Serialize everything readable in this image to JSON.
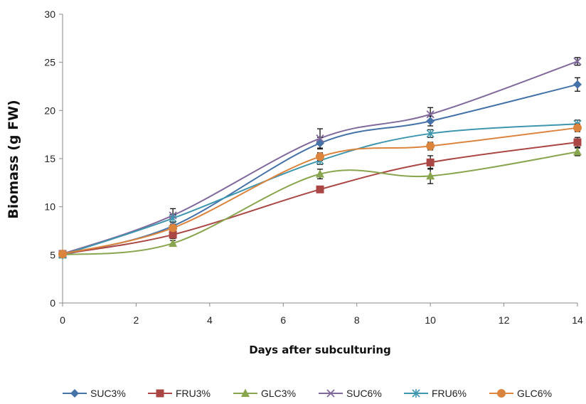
{
  "chart_data": {
    "type": "line",
    "title": "",
    "xlabel": "Days after subculturing",
    "ylabel": "Biomass (g FW)",
    "xlim": [
      0,
      14
    ],
    "ylim": [
      0,
      30
    ],
    "xticks": [
      0,
      2,
      4,
      6,
      8,
      10,
      12,
      14
    ],
    "yticks": [
      0,
      5,
      10,
      15,
      20,
      25,
      30
    ],
    "grid": false,
    "legend_position": "bottom",
    "x": [
      0,
      3,
      7,
      10,
      14
    ],
    "series": [
      {
        "name": "SUC3%",
        "color": "#4572A7",
        "marker": "diamond",
        "values": [
          5.0,
          8.0,
          16.6,
          18.9,
          22.7
        ],
        "errors": [
          0.2,
          0.4,
          0.6,
          0.5,
          0.7
        ]
      },
      {
        "name": "FRU3%",
        "color": "#AA4643",
        "marker": "square",
        "values": [
          5.1,
          7.1,
          11.8,
          14.6,
          16.7
        ],
        "errors": [
          0.2,
          0.4,
          0.3,
          0.7,
          0.5
        ]
      },
      {
        "name": "GLC3%",
        "color": "#89A54E",
        "marker": "triangle",
        "values": [
          5.0,
          6.2,
          13.4,
          13.2,
          15.7
        ],
        "errors": [
          0.2,
          0.3,
          0.5,
          0.8,
          0.4
        ]
      },
      {
        "name": "SUC6%",
        "color": "#80699B",
        "marker": "x",
        "values": [
          5.1,
          9.1,
          17.1,
          19.6,
          25.1
        ],
        "errors": [
          0.2,
          0.7,
          1.0,
          0.7,
          0.4
        ]
      },
      {
        "name": "FRU6%",
        "color": "#3D96AE",
        "marker": "star",
        "values": [
          5.0,
          8.8,
          14.8,
          17.6,
          18.6
        ],
        "errors": [
          0.2,
          0.4,
          0.4,
          0.4,
          0.4
        ]
      },
      {
        "name": "GLC6%",
        "color": "#DB843D",
        "marker": "circle",
        "values": [
          5.1,
          7.8,
          15.2,
          16.3,
          18.2
        ],
        "errors": [
          0.2,
          0.4,
          0.4,
          0.4,
          0.4
        ]
      }
    ]
  }
}
